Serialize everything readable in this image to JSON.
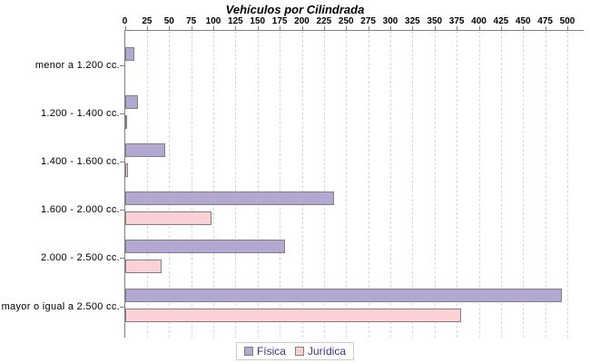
{
  "title": "Vehículos por Cilindrada",
  "chart_data": {
    "type": "bar",
    "orientation": "horizontal",
    "title": "Vehículos por Cilindrada",
    "categories": [
      "menor a 1.200 cc.",
      "1.200 - 1.400 cc.",
      "1.400 - 1.600 cc.",
      "1.600 - 2.000 cc.",
      "2.000 - 2.500 cc.",
      "mayor o igual a 2.500 cc."
    ],
    "series": [
      {
        "name": "Física",
        "color": "#b2a8d2",
        "values": [
          10,
          14,
          45,
          235,
          180,
          493
        ]
      },
      {
        "name": "Jurídica",
        "color": "#fcd1d5",
        "values": [
          0,
          1,
          3,
          97,
          41,
          379
        ]
      }
    ],
    "xlim": [
      0,
      500
    ],
    "x_ticks": [
      0,
      25,
      50,
      75,
      100,
      125,
      150,
      175,
      200,
      225,
      250,
      275,
      300,
      325,
      350,
      375,
      400,
      425,
      450,
      475,
      500
    ],
    "grid": "dashed-vertical",
    "legend_position": "bottom-center",
    "xlabel": "",
    "ylabel": ""
  },
  "colors": {
    "bar_border": "#7f7f7f",
    "axis_line": "#808080",
    "gridline": "#d8d8d8",
    "tick_label": "#000000",
    "category_label": "#000000",
    "legend_text": "#472d82",
    "legend_border": "#cccccc",
    "background": "#ffffff"
  }
}
